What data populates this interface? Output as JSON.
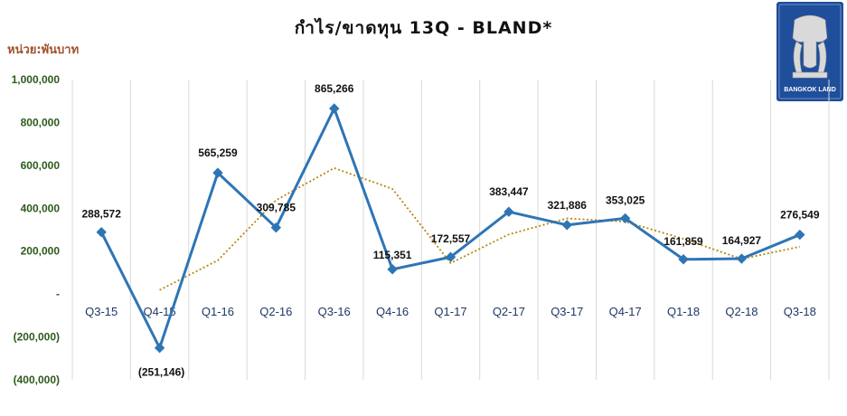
{
  "header": {
    "title": "กำไร/ขาดทุน 13Q - BLAND*",
    "unit": "หน่วย:พันบาท"
  },
  "logo": {
    "text": "BANGKOK LAND",
    "color": "#1f4e9a"
  },
  "chart_data": {
    "type": "line",
    "title": "กำไร/ขาดทุน 13Q - BLAND*",
    "ylabel": "หน่วย:พันบาท",
    "categories": [
      "Q3-15",
      "Q4-15",
      "Q1-16",
      "Q2-16",
      "Q3-16",
      "Q4-16",
      "Q1-17",
      "Q2-17",
      "Q3-17",
      "Q4-17",
      "Q1-18",
      "Q2-18",
      "Q3-18"
    ],
    "series": [
      {
        "values": [
          288572,
          -251146,
          565259,
          309785,
          865266,
          115351,
          172557,
          383447,
          321886,
          353025,
          161859,
          164927,
          276549
        ],
        "labels": [
          "288,572",
          "(251,146)",
          "565,259",
          "309,785",
          "865,266",
          "115,351",
          "172,557",
          "383,447",
          "321,886",
          "353,025",
          "161,859",
          "164,927",
          "276,549"
        ],
        "color": "#2e75b6",
        "marker": "diamond"
      },
      {
        "type": "moving-average",
        "period": 2,
        "color": "#b8860b",
        "style": "dotted"
      }
    ],
    "y_ticks": [
      1000000,
      800000,
      600000,
      400000,
      200000,
      0,
      -200000,
      -400000
    ],
    "y_tick_labels": [
      "1,000,000",
      "800,000",
      "600,000",
      "400,000",
      "200,000",
      "-",
      "(200,000)",
      "(400,000)"
    ],
    "ylim": [
      -400000,
      1000000
    ],
    "grid": "vertical"
  }
}
